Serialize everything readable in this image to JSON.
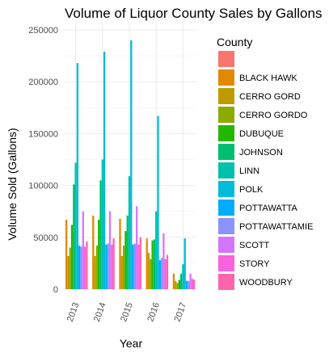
{
  "chart_data": {
    "type": "bar",
    "title": "Volume of Liquor County Sales by Gallons",
    "xlabel": "Year",
    "ylabel": "Volume Sold (Gallons)",
    "categories": [
      "2013",
      "2014",
      "2015",
      "2016",
      "2017"
    ],
    "ylim": [
      0,
      250000
    ],
    "yticks": [
      0,
      50000,
      100000,
      150000,
      200000,
      250000
    ],
    "ytick_labels": [
      "0",
      "50000",
      "100000",
      "150000",
      "200000",
      "250000"
    ],
    "grid": true,
    "legend": {
      "title": "County",
      "position": "right"
    },
    "series": [
      {
        "name": "",
        "color": "#F8766D",
        "values": [
          0,
          0,
          0,
          0,
          0
        ]
      },
      {
        "name": "BLACK HAWK",
        "color": "#E18A00",
        "values": [
          67000,
          71000,
          68000,
          49000,
          15000
        ]
      },
      {
        "name": "CERRO GORD",
        "color": "#BE9C00",
        "values": [
          32000,
          32000,
          32000,
          35000,
          8000
        ]
      },
      {
        "name": "CERRO GORDO",
        "color": "#8CAB00",
        "values": [
          40000,
          42000,
          42000,
          29000,
          6000
        ]
      },
      {
        "name": "DUBUQUE",
        "color": "#24B700",
        "values": [
          62000,
          67000,
          56000,
          47000,
          9000
        ]
      },
      {
        "name": "JOHNSON",
        "color": "#00BE70",
        "values": [
          101000,
          105000,
          71000,
          48000,
          15000
        ]
      },
      {
        "name": "LINN",
        "color": "#00C1AB",
        "values": [
          122000,
          125000,
          109000,
          75000,
          24000
        ]
      },
      {
        "name": "POLK",
        "color": "#00BBDA",
        "values": [
          218000,
          229000,
          240000,
          167000,
          49000
        ]
      },
      {
        "name": "POTTAWATTA",
        "color": "#00ACFC",
        "values": [
          42000,
          43000,
          43000,
          28000,
          8000
        ]
      },
      {
        "name": "POTTAWATTAMIE",
        "color": "#8B93FF",
        "values": [
          41000,
          44000,
          44000,
          30000,
          8000
        ]
      },
      {
        "name": "SCOTT",
        "color": "#D575FE",
        "values": [
          75000,
          75000,
          80000,
          54000,
          15000
        ]
      },
      {
        "name": "STORY",
        "color": "#F962DD",
        "values": [
          41000,
          43000,
          43000,
          29000,
          10000
        ]
      },
      {
        "name": "WOODBURY",
        "color": "#FF65AC",
        "values": [
          46000,
          49000,
          50000,
          33000,
          9000
        ]
      }
    ]
  }
}
